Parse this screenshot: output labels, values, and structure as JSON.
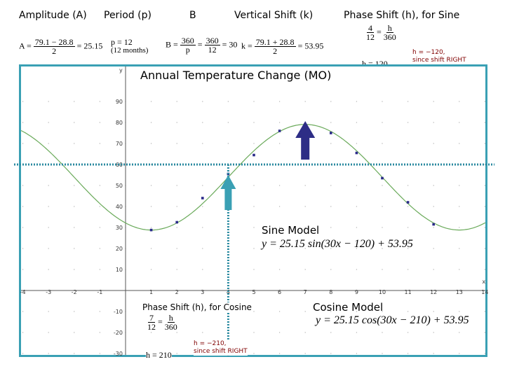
{
  "headers": {
    "amplitude": "Amplitude (A)",
    "period": "Period (p)",
    "b": "B",
    "vertical_shift": "Vertical Shift (k)",
    "phase_shift_sine": "Phase Shift (h), for Sine",
    "phase_shift_cosine": "Phase Shift (h), for Cosine"
  },
  "formulas": {
    "amplitude_lhs": "A =",
    "amplitude_num": "79.1 − 28.8",
    "amplitude_den": "2",
    "amplitude_rhs": "= 25.15",
    "period_eq": "p = 12",
    "period_note": "(12 months)",
    "b_lhs": "B =",
    "b_num1": "360",
    "b_den1": "p",
    "b_mid": "=",
    "b_num2": "360",
    "b_den2": "12",
    "b_rhs": "= 30",
    "k_lhs": "k =",
    "k_num": "79.1 + 28.8",
    "k_den": "2",
    "k_rhs": "= 53.95",
    "sine_frac1_num": "4",
    "sine_frac1_den": "12",
    "sine_eq": "=",
    "sine_frac2_num": "h",
    "sine_frac2_den": "360",
    "sine_h_result": "h = 120",
    "cos_frac1_num": "7",
    "cos_frac1_den": "12",
    "cos_eq": "=",
    "cos_frac2_num": "h",
    "cos_frac2_den": "360",
    "cos_h_result": "h = 210"
  },
  "notes": {
    "sine_note_line1": "h = −120,",
    "sine_note_line2": "since shift RIGHT",
    "cos_note_line1": "h = −210,",
    "cos_note_line2": "since shift RIGHT"
  },
  "graph": {
    "title": "Annual Temperature Change (MO)",
    "sine_model_label": "Sine Model",
    "sine_model_eq": "y = 25.15 sin(30x − 120) + 53.95",
    "cosine_model_label": "Cosine Model",
    "cosine_model_eq": "y = 25.15 cos(30x − 210) + 53.95",
    "x_axis_letter": "x",
    "y_axis_letter": "y"
  },
  "colors": {
    "frame": "#3aa0b4",
    "curve": "#6aaa5a",
    "points": "#2a2a8a",
    "arrow_up_blue": "#2d2d86",
    "arrow_up_teal": "#3aa0b4",
    "dotted_line": "#2a8aa0"
  },
  "chart_data": {
    "type": "scatter",
    "title": "Annual Temperature Change (MO)",
    "xlabel": "x",
    "ylabel": "y",
    "xlim": [
      -4,
      14
    ],
    "ylim": [
      -30,
      95
    ],
    "x_ticks": [
      -4,
      -3,
      -2,
      -1,
      1,
      2,
      3,
      4,
      5,
      6,
      7,
      8,
      9,
      10,
      11,
      12,
      13,
      14
    ],
    "y_ticks": [
      90,
      80,
      70,
      60,
      50,
      40,
      30,
      20,
      10,
      -10,
      -20,
      -30
    ],
    "points": {
      "x": [
        1,
        2,
        3,
        4,
        5,
        6,
        7,
        8,
        9,
        10,
        11,
        12
      ],
      "y": [
        28.8,
        32.5,
        44,
        55.5,
        64.5,
        76,
        79.1,
        75,
        65.5,
        53.5,
        42,
        31.5
      ]
    },
    "curve": {
      "amplitude": 25.15,
      "b_deg": 30,
      "phase_deg": 120,
      "k": 53.95,
      "func": "sin"
    }
  }
}
